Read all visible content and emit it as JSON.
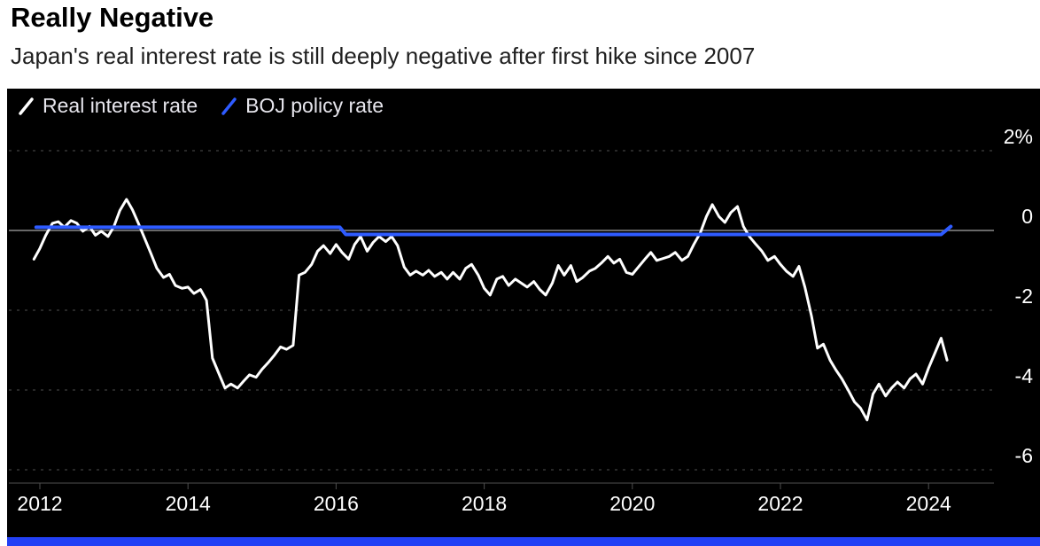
{
  "header": {
    "title": "Really Negative",
    "subtitle": "Japan's real interest rate is still deeply negative after first hike since 2007"
  },
  "legend": [
    {
      "label": "Real interest rate",
      "color": "#ffffff"
    },
    {
      "label": "BOJ policy rate",
      "color": "#2e5bff"
    }
  ],
  "colors": {
    "panel_background": "#000000",
    "gridline": "#4f4f4f",
    "zero_line": "#8a8a8a",
    "axis_text": "#ffffff",
    "legend_text": "#e6e5ec",
    "bottom_bar": "#2240f5"
  },
  "chart_data": {
    "type": "line",
    "title": "Really Negative",
    "subtitle": "Japan's real interest rate is still deeply negative after first hike since 2007",
    "xlabel": "",
    "ylabel": "%",
    "grid": "horizontal-dashed",
    "legend_position": "top-left",
    "x_range": [
      2011.85,
      2024.6
    ],
    "y_range": [
      -6.6,
      2.4
    ],
    "x_ticks": [
      2012,
      2014,
      2016,
      2018,
      2020,
      2022,
      2024
    ],
    "y_ticks": [
      {
        "value": 2,
        "label": "2%"
      },
      {
        "value": 0,
        "label": "0"
      },
      {
        "value": -2,
        "label": "-2"
      },
      {
        "value": -4,
        "label": "-4"
      },
      {
        "value": -6,
        "label": "-6"
      }
    ],
    "series": [
      {
        "name": "Real interest rate",
        "color": "#ffffff",
        "width": 3,
        "points": [
          [
            2011.92,
            -0.72
          ],
          [
            2012.0,
            -0.45
          ],
          [
            2012.08,
            -0.12
          ],
          [
            2012.17,
            0.18
          ],
          [
            2012.25,
            0.22
          ],
          [
            2012.33,
            0.08
          ],
          [
            2012.42,
            0.25
          ],
          [
            2012.5,
            0.18
          ],
          [
            2012.58,
            -0.02
          ],
          [
            2012.67,
            0.1
          ],
          [
            2012.75,
            -0.12
          ],
          [
            2012.83,
            -0.02
          ],
          [
            2012.92,
            -0.15
          ],
          [
            2013.0,
            0.1
          ],
          [
            2013.08,
            0.5
          ],
          [
            2013.17,
            0.78
          ],
          [
            2013.25,
            0.52
          ],
          [
            2013.33,
            0.18
          ],
          [
            2013.42,
            -0.22
          ],
          [
            2013.5,
            -0.58
          ],
          [
            2013.58,
            -0.95
          ],
          [
            2013.67,
            -1.18
          ],
          [
            2013.75,
            -1.1
          ],
          [
            2013.83,
            -1.38
          ],
          [
            2013.92,
            -1.45
          ],
          [
            2014.0,
            -1.42
          ],
          [
            2014.08,
            -1.58
          ],
          [
            2014.17,
            -1.48
          ],
          [
            2014.25,
            -1.75
          ],
          [
            2014.33,
            -3.2
          ],
          [
            2014.42,
            -3.6
          ],
          [
            2014.5,
            -3.95
          ],
          [
            2014.58,
            -3.85
          ],
          [
            2014.67,
            -3.95
          ],
          [
            2014.75,
            -3.78
          ],
          [
            2014.83,
            -3.62
          ],
          [
            2014.92,
            -3.68
          ],
          [
            2015.0,
            -3.48
          ],
          [
            2015.08,
            -3.32
          ],
          [
            2015.17,
            -3.12
          ],
          [
            2015.25,
            -2.92
          ],
          [
            2015.33,
            -2.98
          ],
          [
            2015.42,
            -2.88
          ],
          [
            2015.5,
            -1.12
          ],
          [
            2015.58,
            -1.05
          ],
          [
            2015.67,
            -0.85
          ],
          [
            2015.75,
            -0.52
          ],
          [
            2015.83,
            -0.38
          ],
          [
            2015.92,
            -0.58
          ],
          [
            2016.0,
            -0.35
          ],
          [
            2016.08,
            -0.55
          ],
          [
            2016.17,
            -0.72
          ],
          [
            2016.25,
            -0.35
          ],
          [
            2016.33,
            -0.15
          ],
          [
            2016.42,
            -0.52
          ],
          [
            2016.5,
            -0.3
          ],
          [
            2016.58,
            -0.15
          ],
          [
            2016.67,
            -0.28
          ],
          [
            2016.75,
            -0.15
          ],
          [
            2016.83,
            -0.38
          ],
          [
            2016.92,
            -0.92
          ],
          [
            2017.0,
            -1.12
          ],
          [
            2017.08,
            -1.02
          ],
          [
            2017.17,
            -1.12
          ],
          [
            2017.25,
            -1.0
          ],
          [
            2017.33,
            -1.15
          ],
          [
            2017.42,
            -1.05
          ],
          [
            2017.5,
            -1.22
          ],
          [
            2017.58,
            -1.05
          ],
          [
            2017.67,
            -1.22
          ],
          [
            2017.75,
            -0.95
          ],
          [
            2017.83,
            -0.85
          ],
          [
            2017.92,
            -1.12
          ],
          [
            2018.0,
            -1.45
          ],
          [
            2018.08,
            -1.62
          ],
          [
            2018.17,
            -1.22
          ],
          [
            2018.25,
            -1.15
          ],
          [
            2018.33,
            -1.38
          ],
          [
            2018.42,
            -1.22
          ],
          [
            2018.5,
            -1.32
          ],
          [
            2018.58,
            -1.42
          ],
          [
            2018.67,
            -1.28
          ],
          [
            2018.75,
            -1.48
          ],
          [
            2018.83,
            -1.62
          ],
          [
            2018.92,
            -1.32
          ],
          [
            2019.0,
            -0.88
          ],
          [
            2019.08,
            -1.12
          ],
          [
            2019.17,
            -0.88
          ],
          [
            2019.25,
            -1.28
          ],
          [
            2019.33,
            -1.18
          ],
          [
            2019.42,
            -1.02
          ],
          [
            2019.5,
            -0.95
          ],
          [
            2019.58,
            -0.82
          ],
          [
            2019.67,
            -0.65
          ],
          [
            2019.75,
            -0.82
          ],
          [
            2019.83,
            -0.72
          ],
          [
            2019.92,
            -1.05
          ],
          [
            2020.0,
            -1.1
          ],
          [
            2020.08,
            -0.92
          ],
          [
            2020.17,
            -0.72
          ],
          [
            2020.25,
            -0.55
          ],
          [
            2020.33,
            -0.75
          ],
          [
            2020.42,
            -0.7
          ],
          [
            2020.5,
            -0.65
          ],
          [
            2020.58,
            -0.55
          ],
          [
            2020.67,
            -0.75
          ],
          [
            2020.75,
            -0.65
          ],
          [
            2020.83,
            -0.35
          ],
          [
            2020.92,
            -0.05
          ],
          [
            2021.0,
            0.35
          ],
          [
            2021.08,
            0.65
          ],
          [
            2021.17,
            0.35
          ],
          [
            2021.25,
            0.2
          ],
          [
            2021.33,
            0.45
          ],
          [
            2021.42,
            0.6
          ],
          [
            2021.5,
            0.1
          ],
          [
            2021.58,
            -0.15
          ],
          [
            2021.67,
            -0.35
          ],
          [
            2021.75,
            -0.52
          ],
          [
            2021.83,
            -0.75
          ],
          [
            2021.92,
            -0.65
          ],
          [
            2022.0,
            -0.85
          ],
          [
            2022.08,
            -1.02
          ],
          [
            2022.17,
            -1.15
          ],
          [
            2022.25,
            -0.9
          ],
          [
            2022.33,
            -1.42
          ],
          [
            2022.42,
            -2.15
          ],
          [
            2022.5,
            -2.95
          ],
          [
            2022.58,
            -2.85
          ],
          [
            2022.67,
            -3.25
          ],
          [
            2022.75,
            -3.5
          ],
          [
            2022.83,
            -3.72
          ],
          [
            2022.92,
            -4.02
          ],
          [
            2023.0,
            -4.3
          ],
          [
            2023.08,
            -4.45
          ],
          [
            2023.17,
            -4.75
          ],
          [
            2023.25,
            -4.1
          ],
          [
            2023.33,
            -3.85
          ],
          [
            2023.42,
            -4.15
          ],
          [
            2023.5,
            -3.95
          ],
          [
            2023.58,
            -3.8
          ],
          [
            2023.67,
            -3.95
          ],
          [
            2023.75,
            -3.72
          ],
          [
            2023.83,
            -3.6
          ],
          [
            2023.92,
            -3.85
          ],
          [
            2024.0,
            -3.45
          ],
          [
            2024.08,
            -3.1
          ],
          [
            2024.17,
            -2.7
          ],
          [
            2024.25,
            -3.25
          ]
        ]
      },
      {
        "name": "BOJ policy rate",
        "color": "#2e5bff",
        "width": 4,
        "points": [
          [
            2011.95,
            0.08
          ],
          [
            2016.05,
            0.08
          ],
          [
            2016.13,
            -0.1
          ],
          [
            2024.17,
            -0.1
          ],
          [
            2024.3,
            0.1
          ]
        ]
      }
    ]
  }
}
